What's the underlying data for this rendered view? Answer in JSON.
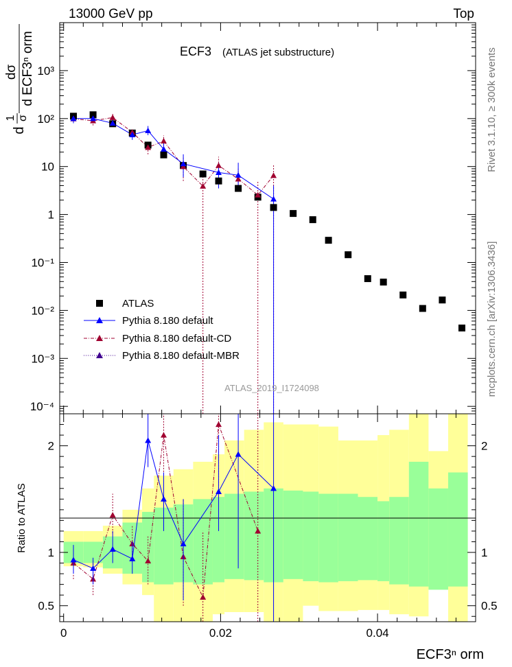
{
  "header": {
    "energy_label": "13000 GeV pp",
    "process_label": "Top"
  },
  "side_text": {
    "rivet_version": "Rivet 3.1.10, ≥ 300k events",
    "mcplots_url": "mcplots.cern.ch [arXiv:1306.3436]"
  },
  "chart_data": [
    {
      "type": "scatter",
      "panel": "main",
      "title": "ECF3",
      "subtitle": "(ATLAS jet substructure)",
      "analysis_id": "ATLAS_2019_I1724098",
      "ylabel_top": "dσ",
      "ylabel_bottom": "d ECF3ⁿ orm",
      "ylabel_prefix_top": "1",
      "ylabel_prefix_bottom": "σ",
      "ylabel_prefix_d": "d",
      "yscale": "log",
      "ylim": [
        7e-05,
        10000
      ],
      "xlim": [
        -0.0005,
        0.0525
      ],
      "ytick_labels": [
        "10⁻⁴",
        "10⁻³",
        "10⁻²",
        "10⁻¹",
        "1",
        "10",
        "10²",
        "10³"
      ],
      "ytick_values": [
        0.0001,
        0.001,
        0.01,
        0.1,
        1,
        10,
        100,
        1000
      ],
      "legend": [
        "ATLAS",
        "Pythia 8.180 default",
        "Pythia 8.180 default-CD",
        "Pythia 8.180 default-MBR"
      ],
      "series": [
        {
          "name": "ATLAS",
          "color": "#000000",
          "marker": "square",
          "x": [
            0.00125,
            0.00375,
            0.00625,
            0.00875,
            0.01075,
            0.01275,
            0.01525,
            0.01775,
            0.01975,
            0.02225,
            0.02475,
            0.02675,
            0.02925,
            0.03175,
            0.03375,
            0.03625,
            0.03875,
            0.04075,
            0.04325,
            0.04575,
            0.04825,
            0.05075
          ],
          "y": [
            112,
            120,
            78,
            50,
            28,
            17.5,
            10.5,
            7,
            5,
            3.5,
            2.3,
            1.4,
            1.05,
            0.78,
            0.29,
            0.145,
            0.046,
            0.039,
            0.021,
            0.011,
            0.0165,
            0.0043
          ]
        },
        {
          "name": "Pythia 8.180 default",
          "color": "#0000ff",
          "marker": "triangle",
          "linestyle": "solid",
          "x": [
            0.00125,
            0.00375,
            0.00625,
            0.00875,
            0.01075,
            0.01275,
            0.01525,
            0.01775,
            0.01975,
            0.02225,
            0.02475,
            0.02675
          ],
          "y": [
            100,
            100,
            80,
            46,
            56,
            23,
            11.4,
            null,
            7.5,
            6.6,
            null,
            2.1
          ],
          "ylow": [
            80,
            80,
            68,
            36,
            45,
            16,
            6,
            null,
            3.5,
            3.5,
            null,
            5e-05
          ],
          "yhigh": [
            125,
            120,
            95,
            58,
            70,
            32,
            18,
            null,
            12,
            12,
            null,
            4
          ]
        },
        {
          "name": "Pythia 8.180 default-CD",
          "color": "#a00030",
          "marker": "triangle",
          "linestyle": "dashdot",
          "x": [
            0.00125,
            0.00375,
            0.00625,
            0.00875,
            0.01075,
            0.01275,
            0.01525,
            0.01775,
            0.01975,
            0.02225,
            0.02475,
            0.02675
          ],
          "y": [
            99,
            90,
            105,
            52,
            25,
            34,
            10,
            3.9,
            10.5,
            5.5,
            2.55,
            6.5
          ],
          "ylow": [
            85,
            72,
            90,
            42,
            18,
            26,
            5,
            5e-05,
            7,
            3,
            5e-05,
            5e-05
          ],
          "yhigh": [
            118,
            110,
            125,
            62,
            33,
            45,
            16,
            8,
            16,
            9,
            5,
            11
          ]
        },
        {
          "name": "Pythia 8.180 default-MBR",
          "color": "#400090",
          "marker": "triangle",
          "linestyle": "dotted",
          "x": [],
          "y": []
        }
      ]
    },
    {
      "type": "scatter",
      "panel": "ratio",
      "ylabel": "Ratio to ATLAS",
      "xlabel": "ECF3ⁿ orm",
      "ylim": [
        0.35,
        2.3
      ],
      "xlim": [
        -0.0005,
        0.0525
      ],
      "xtick_labels": [
        "0",
        "0.02",
        "0.04"
      ],
      "xtick_values": [
        0,
        0.02,
        0.04
      ],
      "ytick_labels": [
        "0.5",
        "1",
        "2"
      ],
      "ytick_values": [
        0.5,
        1,
        2
      ],
      "bands": {
        "edges": [
          0,
          0.0025,
          0.005,
          0.0075,
          0.01,
          0.0115,
          0.014,
          0.0165,
          0.019,
          0.0205,
          0.023,
          0.0255,
          0.028,
          0.0305,
          0.0325,
          0.035,
          0.0375,
          0.04,
          0.0415,
          0.044,
          0.0465,
          0.049,
          0.0515
        ],
        "green_low": [
          0.9,
          0.9,
          0.85,
          0.8,
          0.72,
          0.7,
          0.72,
          0.7,
          0.72,
          0.75,
          0.74,
          0.72,
          0.75,
          0.73,
          0.72,
          0.73,
          0.74,
          0.73,
          0.7,
          0.68,
          0.65,
          0.68
        ],
        "green_high": [
          1.1,
          1.1,
          1.15,
          1.28,
          1.38,
          1.42,
          1.45,
          1.5,
          1.52,
          1.55,
          1.57,
          1.6,
          1.58,
          1.57,
          1.55,
          1.55,
          1.52,
          1.48,
          1.52,
          1.85,
          1.6,
          1.75
        ],
        "yellow_low": [
          0.87,
          0.86,
          0.8,
          0.7,
          0.6,
          0.35,
          0.35,
          0.35,
          0.42,
          0.44,
          0.44,
          0.35,
          0.35,
          0.5,
          0.45,
          0.45,
          0.46,
          0.46,
          0.42,
          0.4,
          0.7,
          0.35
        ],
        "yellow_high": [
          1.2,
          1.2,
          1.25,
          1.4,
          1.6,
          1.72,
          1.78,
          1.85,
          1.92,
          2.05,
          2.15,
          2.22,
          2.2,
          2.2,
          2.18,
          2.05,
          2.05,
          2.1,
          2.15,
          2.35,
          1.95,
          2.35
        ]
      },
      "series": [
        {
          "name": "Pythia 8.180 default",
          "color": "#0000ff",
          "x": [
            0.00125,
            0.00375,
            0.00625,
            0.00875,
            0.01075,
            0.01275,
            0.01525,
            0.01975,
            0.02225,
            0.02675
          ],
          "y": [
            0.93,
            0.85,
            1.03,
            0.94,
            2.05,
            1.5,
            1.08,
            1.57,
            1.92,
            1.6
          ],
          "ylow": [
            0.8,
            0.7,
            0.9,
            0.8,
            1.8,
            1.2,
            0.55,
            1.2,
            0.85,
            0.1
          ],
          "yhigh": [
            1.07,
            0.95,
            1.2,
            1.1,
            2.3,
            1.75,
            1.5,
            2.1,
            2.3,
            2.3
          ]
        },
        {
          "name": "Pythia 8.180 default-CD",
          "color": "#a00030",
          "x": [
            0.00125,
            0.00375,
            0.00625,
            0.00875,
            0.01075,
            0.01275,
            0.01525,
            0.01775,
            0.01975,
            0.02475
          ],
          "y": [
            0.9,
            0.75,
            1.35,
            1.08,
            0.92,
            2.1,
            0.96,
            0.58,
            2.2,
            1.2
          ],
          "ylow": [
            0.75,
            0.6,
            1.18,
            0.95,
            0.7,
            1.6,
            0.5,
            0.1,
            1.6,
            0.1
          ],
          "yhigh": [
            1.0,
            0.92,
            1.55,
            1.25,
            1.15,
            2.3,
            1.5,
            1.2,
            2.3,
            2.3
          ]
        }
      ]
    }
  ]
}
